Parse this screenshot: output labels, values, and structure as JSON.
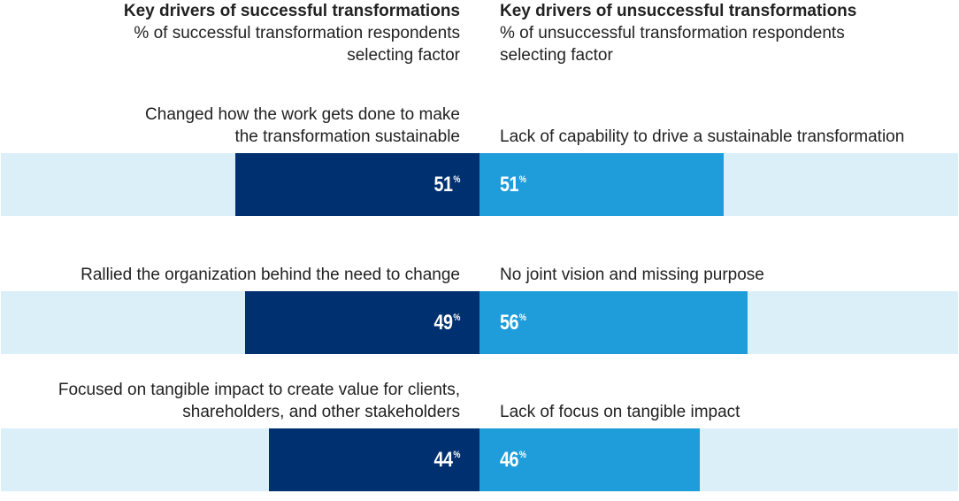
{
  "headers": {
    "left": {
      "title": "Key drivers of successful transformations",
      "subtitle_line1": "% of successful transformation respondents",
      "subtitle_line2": "selecting factor"
    },
    "right": {
      "title": "Key drivers of unsuccessful transformations",
      "subtitle_line1": "% of unsuccessful transformation respondents",
      "subtitle_line2": "selecting factor"
    }
  },
  "colors": {
    "successful": "#003070",
    "unsuccessful": "#1e9dda",
    "track": "#dbeff9"
  },
  "unit": "%",
  "chart_data": {
    "type": "bar",
    "orientation": "horizontal-diverging",
    "scale_max_percent": 100,
    "rows": [
      {
        "successful_label_line1": "Changed how the work gets done to make",
        "successful_label_line2": "the transformation sustainable",
        "successful_value": 51,
        "unsuccessful_label": "Lack of capability to drive a sustainable transformation",
        "unsuccessful_value": 51
      },
      {
        "successful_label_line1": "Rallied the organization behind the need to change",
        "successful_label_line2": "",
        "successful_value": 49,
        "unsuccessful_label": "No joint vision and missing purpose",
        "unsuccessful_value": 56
      },
      {
        "successful_label_line1": "Focused on tangible impact to create value for clients,",
        "successful_label_line2": "shareholders, and other stakeholders",
        "successful_value": 44,
        "unsuccessful_label": "Lack of focus on tangible impact",
        "unsuccessful_value": 46
      }
    ]
  }
}
